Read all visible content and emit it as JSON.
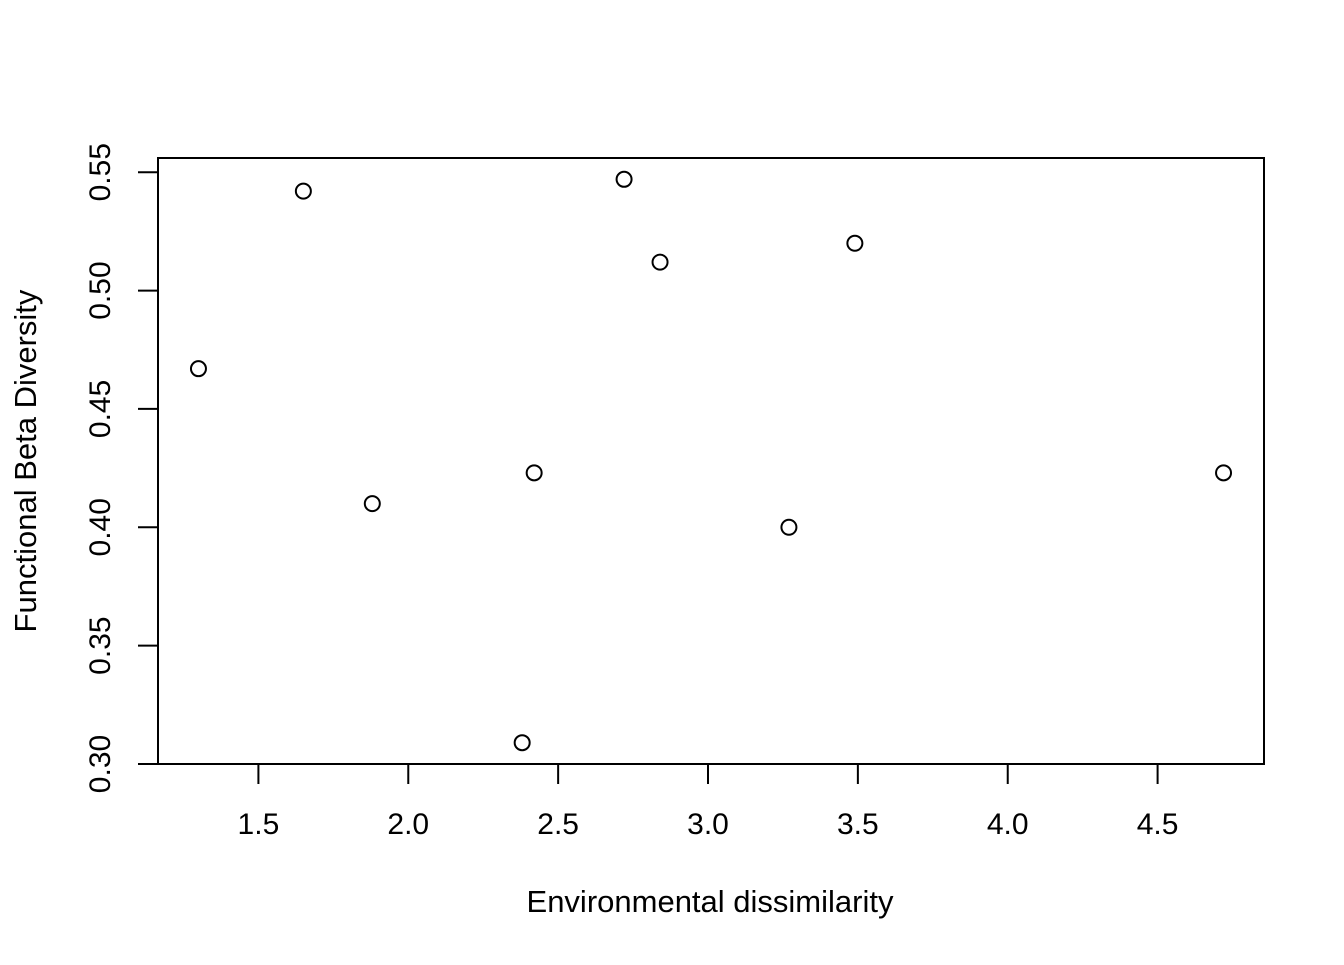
{
  "chart_data": {
    "type": "scatter",
    "title": "",
    "xlabel": "Environmental dissimilarity",
    "ylabel": "Functional Beta Diversity",
    "xlim": [
      1.165,
      4.855
    ],
    "ylim": [
      0.3,
      0.556
    ],
    "x_ticks": [
      1.5,
      2.0,
      2.5,
      3.0,
      3.5,
      4.0,
      4.5
    ],
    "x_tick_labels": [
      "1.5",
      "2.0",
      "2.5",
      "3.0",
      "3.5",
      "4.0",
      "4.5"
    ],
    "y_ticks": [
      0.3,
      0.35,
      0.4,
      0.45,
      0.5,
      0.55
    ],
    "y_tick_labels": [
      "0.30",
      "0.35",
      "0.40",
      "0.45",
      "0.50",
      "0.55"
    ],
    "grid": false,
    "legend": "none",
    "marker": "open-circle",
    "points": [
      {
        "x": 1.3,
        "y": 0.467
      },
      {
        "x": 1.65,
        "y": 0.542
      },
      {
        "x": 1.88,
        "y": 0.41
      },
      {
        "x": 2.38,
        "y": 0.309
      },
      {
        "x": 2.42,
        "y": 0.423
      },
      {
        "x": 2.72,
        "y": 0.547
      },
      {
        "x": 2.84,
        "y": 0.512
      },
      {
        "x": 3.27,
        "y": 0.4
      },
      {
        "x": 3.49,
        "y": 0.52
      },
      {
        "x": 4.72,
        "y": 0.423
      }
    ]
  }
}
